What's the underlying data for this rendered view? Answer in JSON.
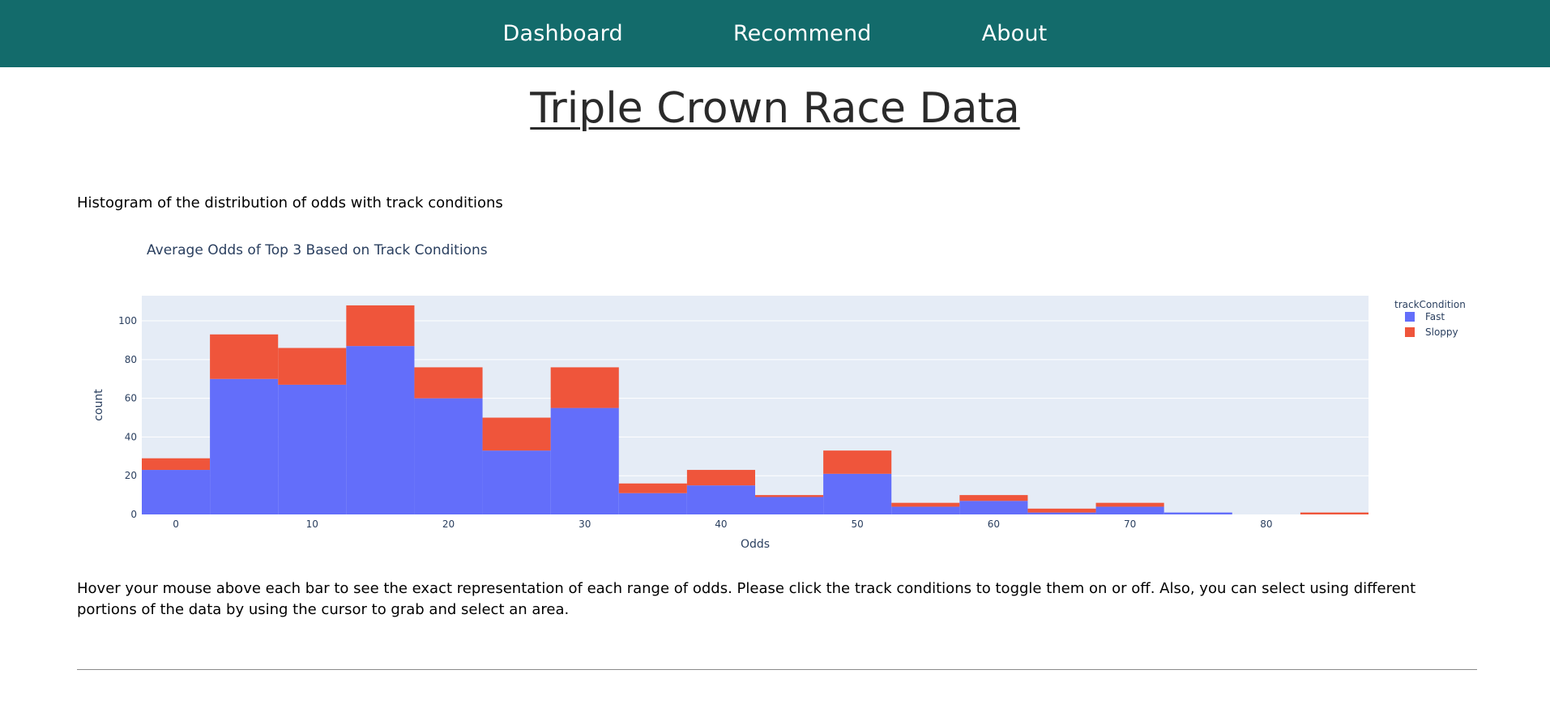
{
  "nav": {
    "items": [
      "Dashboard",
      "Recommend",
      "About"
    ]
  },
  "page": {
    "title": "Triple Crown Race Data",
    "description": "Histogram of the distribution of odds with track conditions",
    "instructions": "Hover your mouse above each bar to see the exact representation of each range of odds. Please click the track conditions to toggle them on or off. Also, you can select using different portions of the data by using the cursor to grab and select an area."
  },
  "colors": {
    "nav_bg": "#136b6b",
    "plot_bg": "#e5ecf6",
    "fast": "#636efa",
    "sloppy": "#ef553b"
  },
  "chart_data": {
    "type": "bar",
    "stacked": true,
    "title": "Average Odds of Top 3 Based on Track Conditions",
    "xlabel": "Odds",
    "ylabel": "count",
    "legend_title": "trackCondition",
    "legend_position": "top-right",
    "xlim": [
      -2.5,
      87.5
    ],
    "ylim": [
      0,
      113
    ],
    "x_ticks": [
      0,
      10,
      20,
      30,
      40,
      50,
      60,
      70,
      80
    ],
    "y_ticks": [
      0,
      20,
      40,
      60,
      80,
      100
    ],
    "bin_size": 5,
    "bins": [
      0,
      5,
      10,
      15,
      20,
      25,
      30,
      35,
      40,
      45,
      50,
      55,
      60,
      65,
      70,
      75,
      80,
      85
    ],
    "series": [
      {
        "name": "Fast",
        "color": "#636efa",
        "values": [
          23,
          70,
          67,
          87,
          60,
          33,
          55,
          11,
          15,
          9,
          21,
          4,
          7,
          1,
          4,
          1,
          0,
          0
        ]
      },
      {
        "name": "Sloppy",
        "color": "#ef553b",
        "values": [
          6,
          23,
          19,
          21,
          16,
          17,
          21,
          5,
          8,
          1,
          12,
          2,
          3,
          2,
          2,
          0,
          0,
          1
        ]
      }
    ]
  }
}
